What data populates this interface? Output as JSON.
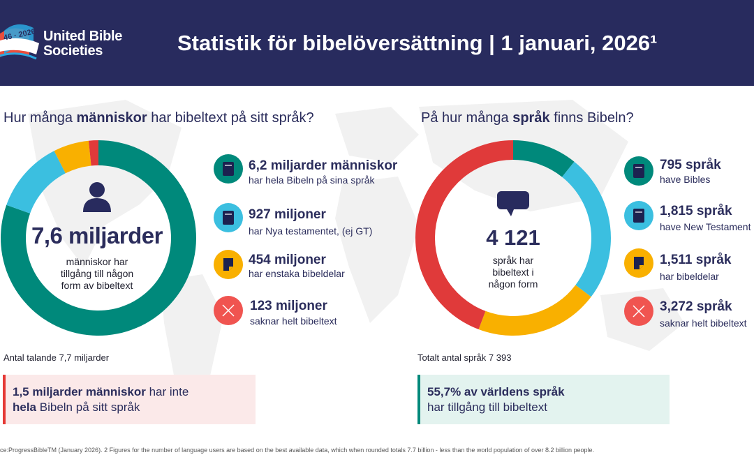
{
  "header": {
    "logo_text_line1": "United Bible",
    "logo_text_line2": "Societies",
    "logo_years": "46 · 2026",
    "title": "Statistik för bibelöversättning | 1 januari, 2026¹"
  },
  "left": {
    "question_pre": "Hur många ",
    "question_bold": "människor",
    "question_post": " har bibeltext på sitt språk?",
    "center_icon": "person-icon",
    "center_big": "7,6 miljarder",
    "center_small": "människor har tillgång till någon form av bibeltext",
    "items": [
      {
        "title": "6,2 miljarder människor",
        "subtitle": "har hela Bibeln på sina språk",
        "icon": "bible-icon",
        "color": "#00897b"
      },
      {
        "title": "927 miljoner",
        "subtitle": "har Nya testamentet, (ej GT)",
        "icon": "bible-icon",
        "color": "#3bbfe0"
      },
      {
        "title": "454 miljoner",
        "subtitle": "har enstaka bibeldelar",
        "icon": "bible-portion-icon",
        "color": "#f9b000"
      },
      {
        "title": "123 miljoner",
        "subtitle": "saknar helt bibeltext",
        "icon": "cross-icon",
        "color": "#f05450"
      }
    ],
    "total": "Antal talande 7,7 miljarder",
    "callout_bold1": "1,5 miljarder människor",
    "callout_text1": " har inte",
    "callout_bold2": "hela",
    "callout_text2": " Bibeln på sitt språk",
    "callout_bg": "#fbe9e9",
    "callout_bar": "#e53935"
  },
  "right": {
    "question_pre": "På hur många ",
    "question_bold": "språk",
    "question_post": " finns Bibeln?",
    "center_icon": "speech-bubble-icon",
    "center_big": "4 121",
    "center_small": "språk har bibeltext i någon form",
    "items": [
      {
        "title": "795 språk",
        "subtitle": "have Bibles",
        "icon": "bible-icon",
        "color": "#00897b"
      },
      {
        "title": "1,815 språk",
        "subtitle": "have New Testament",
        "icon": "bible-icon",
        "color": "#3bbfe0"
      },
      {
        "title": "1,511 språk",
        "subtitle": "har bibeldelar",
        "icon": "bible-portion-icon",
        "color": "#f9b000"
      },
      {
        "title": "3,272 språk",
        "subtitle": "saknar helt bibeltext",
        "icon": "cross-icon",
        "color": "#f05450"
      }
    ],
    "total": "Totalt antal språk 7 393",
    "callout_bold1": "55,7% av världens språk",
    "callout_text1": "har tillgång till bibeltext",
    "callout_bg": "#e3f3ef",
    "callout_bar": "#00897b"
  },
  "footnote": "ce:ProgressBibleTM (January 2026). 2 Figures for the number of language users are based on the best available data, which when rounded totals 7.7 billion - less than the world population of over 8.2 billion people.",
  "colors": {
    "header": "#282b5e",
    "text": "#2b2d5c",
    "full_bible": "#00897b",
    "new_testament": "#3bbfe0",
    "portions": "#f9b000",
    "none": "#f05450",
    "none_donut": "#e03a3a"
  },
  "chart_data": [
    {
      "type": "pie",
      "categories": [
        "6,2 miljarder människor",
        "927 miljoner",
        "454 miljoner",
        "123 miljoner"
      ],
      "values": [
        6200,
        927,
        454,
        123
      ],
      "unit": "miljoner"
    },
    {
      "type": "pie",
      "categories": [
        "795 språk",
        "1,815 språk",
        "1,511 språk",
        "3,272 språk"
      ],
      "values": [
        795,
        1815,
        1511,
        3272
      ]
    }
  ]
}
